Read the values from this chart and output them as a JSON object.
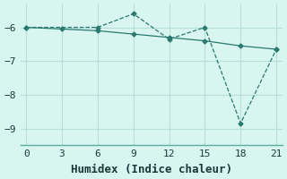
{
  "line1_x": [
    0,
    6,
    9,
    12,
    15,
    18,
    21
  ],
  "line1_y": [
    -6.0,
    -6.0,
    -5.6,
    -6.35,
    -6.0,
    -8.85,
    -6.65
  ],
  "line2_x": [
    0,
    3,
    6,
    9,
    12,
    15,
    18,
    21
  ],
  "line2_y": [
    -6.0,
    -6.05,
    -6.1,
    -6.2,
    -6.3,
    -6.4,
    -6.55,
    -6.65
  ],
  "line_color": "#2a7a6e",
  "bg_color": "#d8f5f0",
  "grid_color": "#b8e0db",
  "xlabel": "Humidex (Indice chaleur)",
  "xlim": [
    -0.5,
    21.5
  ],
  "ylim": [
    -9.5,
    -5.3
  ],
  "xticks": [
    0,
    3,
    6,
    9,
    12,
    15,
    18,
    21
  ],
  "yticks": [
    -9,
    -8,
    -7,
    -6
  ],
  "marker": "D",
  "marker_size": 2.5,
  "tick_fontsize": 8,
  "label_fontsize": 9
}
